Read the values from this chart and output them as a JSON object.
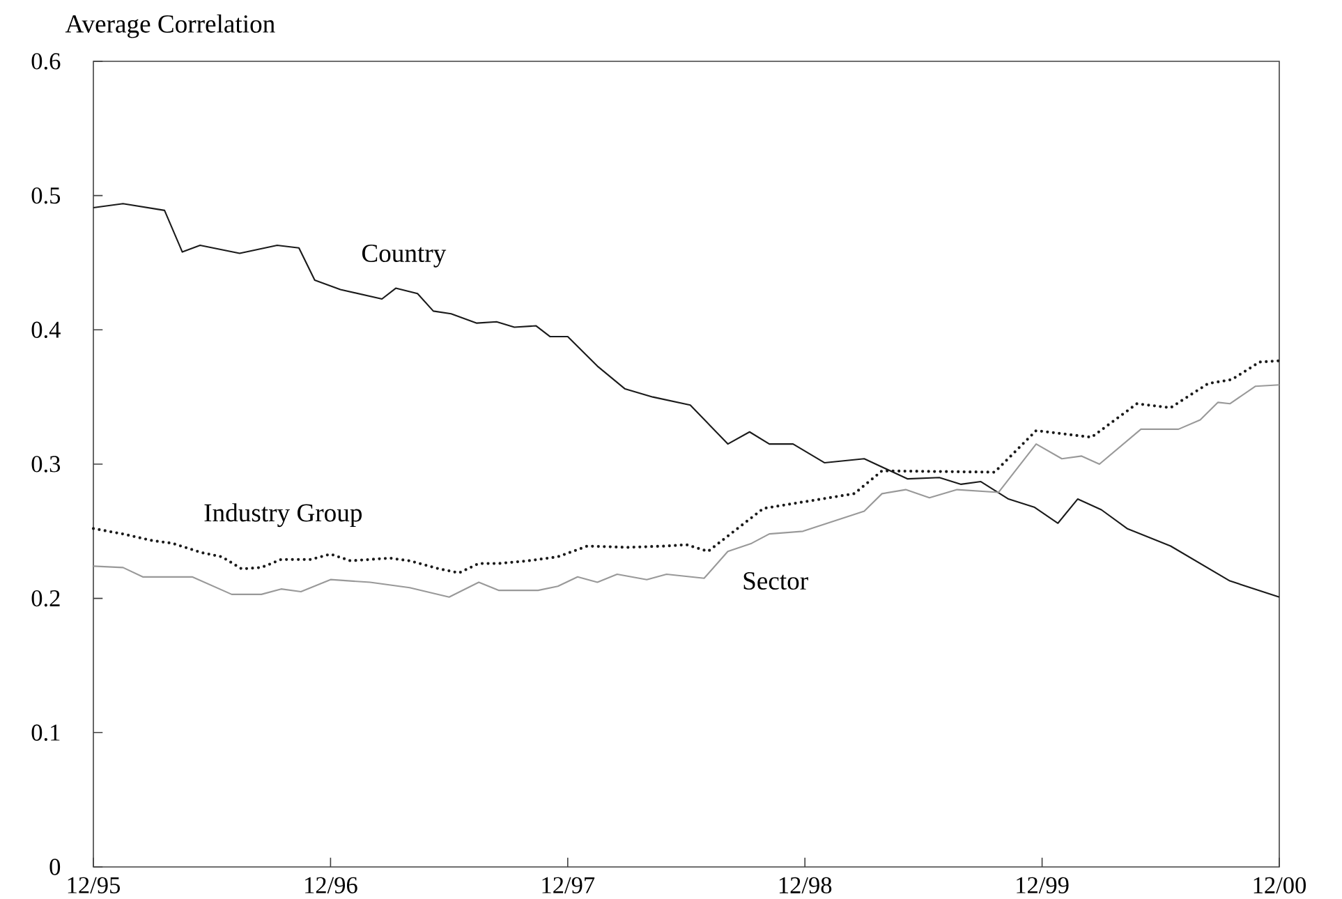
{
  "chart_data": {
    "type": "line",
    "ylabel": "Average Correlation",
    "xlim": [
      "1995-12-01",
      "2000-12-01"
    ],
    "ylim": [
      0,
      0.6
    ],
    "xticks": [
      {
        "value": "1995-12-01",
        "label": "12/95"
      },
      {
        "value": "1996-12-01",
        "label": "12/96"
      },
      {
        "value": "1997-12-01",
        "label": "12/97"
      },
      {
        "value": "1998-12-01",
        "label": "12/98"
      },
      {
        "value": "1999-12-01",
        "label": "12/99"
      },
      {
        "value": "2000-12-01",
        "label": "12/00"
      }
    ],
    "yticks": [
      0,
      0.1,
      0.2,
      0.3,
      0.4,
      0.5,
      0.6
    ],
    "grid": false,
    "legend": false,
    "marker": "none",
    "series": [
      {
        "name": "Country",
        "color": "#1a1a1a",
        "line_style": "solid",
        "x": [
          "1995-12-01",
          "1996-01-16",
          "1996-03-19",
          "1996-04-16",
          "1996-05-13",
          "1996-07-13",
          "1996-09-10",
          "1996-10-13",
          "1996-11-07",
          "1996-12-16",
          "1997-02-19",
          "1997-03-10",
          "1997-04-13",
          "1997-05-07",
          "1997-06-04",
          "1997-07-13",
          "1997-08-13",
          "1997-09-10",
          "1997-10-13",
          "1997-11-04",
          "1997-12-01",
          "1998-01-16",
          "1998-02-28",
          "1998-04-10",
          "1998-06-07",
          "1998-08-04",
          "1998-09-07",
          "1998-10-07",
          "1998-11-13",
          "1999-01-01",
          "1999-03-01",
          "1999-05-07",
          "1999-06-25",
          "1999-07-28",
          "1999-08-28",
          "1999-10-10",
          "1999-11-19",
          "1999-12-25",
          "2000-01-25",
          "2000-03-01",
          "2000-04-10",
          "2000-06-16",
          "2000-09-16",
          "2000-12-01"
        ],
        "values": [
          0.491,
          0.494,
          0.489,
          0.458,
          0.463,
          0.457,
          0.463,
          0.461,
          0.437,
          0.43,
          0.423,
          0.431,
          0.427,
          0.414,
          0.412,
          0.405,
          0.406,
          0.402,
          0.403,
          0.395,
          0.395,
          0.373,
          0.356,
          0.35,
          0.344,
          0.315,
          0.324,
          0.315,
          0.315,
          0.301,
          0.304,
          0.289,
          0.29,
          0.285,
          0.287,
          0.274,
          0.268,
          0.256,
          0.274,
          0.266,
          0.252,
          0.239,
          0.213,
          0.201
        ]
      },
      {
        "name": "Industry Group",
        "color": "#1a1a1a",
        "line_style": "dotted",
        "x": [
          "1995-12-01",
          "1996-01-16",
          "1996-03-01",
          "1996-04-01",
          "1996-05-16",
          "1996-06-16",
          "1996-07-16",
          "1996-08-16",
          "1996-09-16",
          "1996-11-01",
          "1996-12-01",
          "1997-01-01",
          "1997-03-01",
          "1997-04-01",
          "1997-05-16",
          "1997-06-16",
          "1997-07-16",
          "1997-08-16",
          "1997-10-01",
          "1997-11-16",
          "1998-01-01",
          "1998-03-01",
          "1998-05-01",
          "1998-06-01",
          "1998-07-04",
          "1998-09-28",
          "1999-02-16",
          "1999-03-28",
          "1999-09-19",
          "1999-11-22",
          "2000-02-16",
          "2000-04-25",
          "2000-06-16",
          "2000-08-13",
          "2000-09-19",
          "2000-11-01",
          "2000-12-01"
        ],
        "values": [
          0.252,
          0.248,
          0.243,
          0.241,
          0.234,
          0.231,
          0.222,
          0.223,
          0.229,
          0.229,
          0.233,
          0.228,
          0.23,
          0.228,
          0.222,
          0.219,
          0.226,
          0.226,
          0.228,
          0.231,
          0.239,
          0.238,
          0.239,
          0.24,
          0.235,
          0.267,
          0.278,
          0.295,
          0.294,
          0.325,
          0.32,
          0.345,
          0.342,
          0.36,
          0.363,
          0.376,
          0.377
        ]
      },
      {
        "name": "Sector",
        "color": "#999999",
        "line_style": "solid",
        "x": [
          "1995-12-01",
          "1996-01-16",
          "1996-02-16",
          "1996-05-01",
          "1996-07-01",
          "1996-08-16",
          "1996-09-16",
          "1996-10-16",
          "1996-12-01",
          "1997-02-01",
          "1997-04-01",
          "1997-06-01",
          "1997-07-16",
          "1997-08-16",
          "1997-10-16",
          "1997-11-16",
          "1997-12-16",
          "1998-01-16",
          "1998-02-16",
          "1998-04-01",
          "1998-05-01",
          "1998-06-28",
          "1998-08-04",
          "1998-09-10",
          "1998-10-07",
          "1998-11-28",
          "1999-03-01",
          "1999-03-28",
          "1999-05-04",
          "1999-06-10",
          "1999-07-22",
          "1999-09-25",
          "1999-11-22",
          "2000-01-01",
          "2000-02-01",
          "2000-02-28",
          "2000-05-01",
          "2000-06-28",
          "2000-08-01",
          "2000-08-28",
          "2000-09-16",
          "2000-10-25",
          "2000-12-01"
        ],
        "values": [
          0.224,
          0.223,
          0.216,
          0.216,
          0.203,
          0.203,
          0.207,
          0.205,
          0.214,
          0.212,
          0.208,
          0.201,
          0.212,
          0.206,
          0.206,
          0.209,
          0.216,
          0.212,
          0.218,
          0.214,
          0.218,
          0.215,
          0.235,
          0.241,
          0.248,
          0.25,
          0.265,
          0.278,
          0.281,
          0.275,
          0.281,
          0.279,
          0.315,
          0.304,
          0.306,
          0.3,
          0.326,
          0.326,
          0.333,
          0.346,
          0.345,
          0.358,
          0.359
        ]
      }
    ]
  }
}
